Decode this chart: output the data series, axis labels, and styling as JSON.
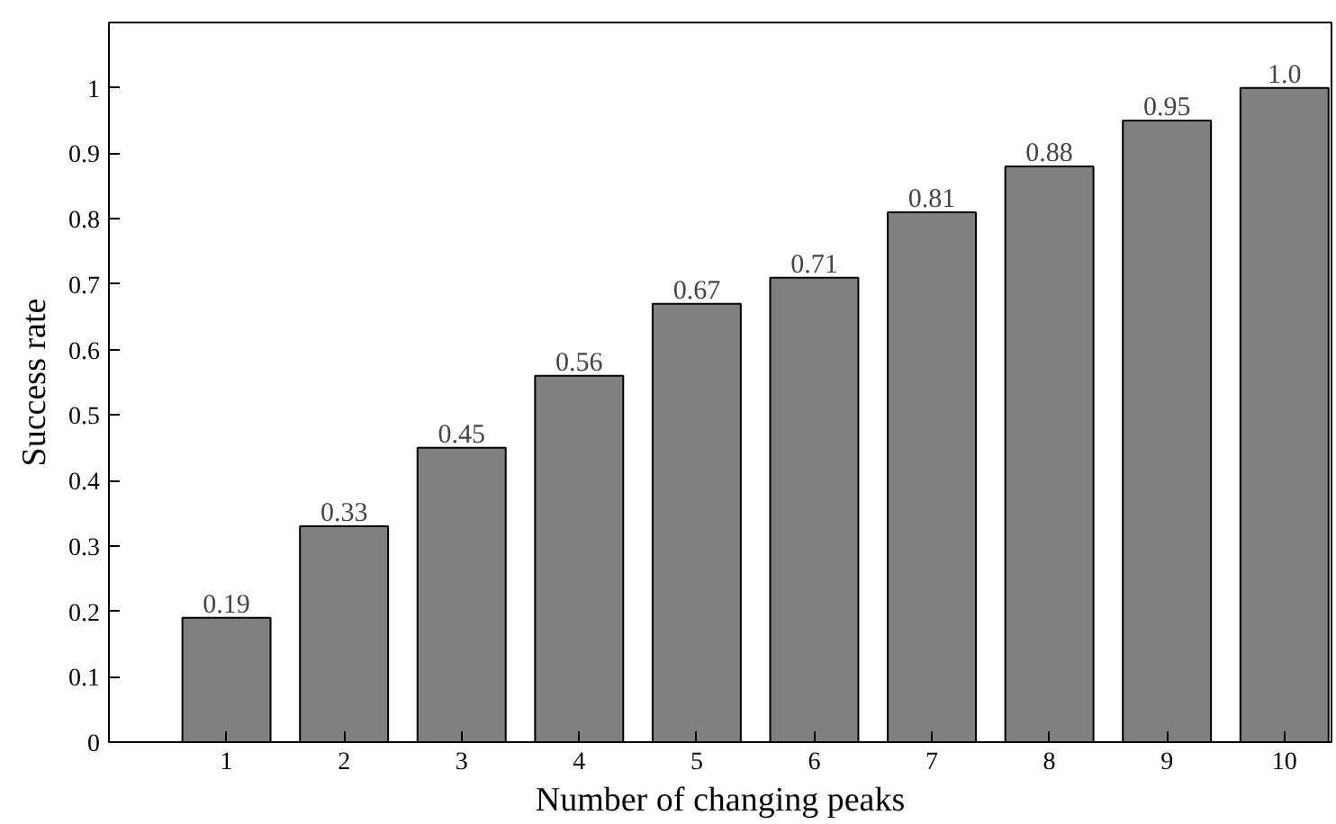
{
  "chart_data": {
    "type": "bar",
    "xlabel": "Number of changing peaks",
    "ylabel": "Success rate",
    "categories": [
      "1",
      "2",
      "3",
      "4",
      "5",
      "6",
      "7",
      "8",
      "9",
      "10"
    ],
    "values": [
      0.19,
      0.33,
      0.45,
      0.56,
      0.67,
      0.71,
      0.81,
      0.88,
      0.95,
      1.0
    ],
    "value_labels": [
      "0.19",
      "0.33",
      "0.45",
      "0.56",
      "0.67",
      "0.71",
      "0.81",
      "0.88",
      "0.95",
      "1.0"
    ],
    "color": "#808080",
    "ylim": [
      0,
      1.1
    ],
    "yticks": [
      0,
      0.1,
      0.2,
      0.3,
      0.4,
      0.5,
      0.6,
      0.7,
      0.8,
      0.9,
      1
    ],
    "grid": false
  }
}
